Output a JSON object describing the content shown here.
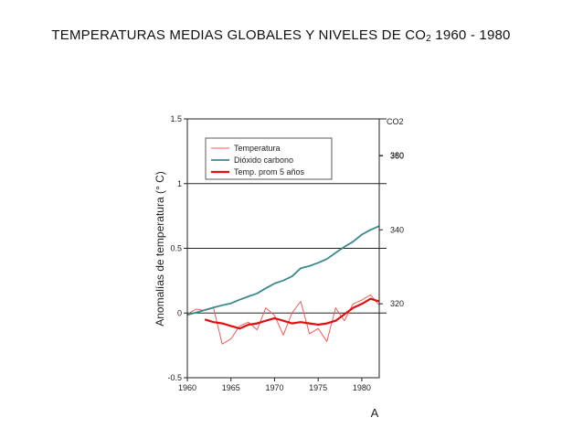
{
  "title": {
    "main": "TEMPERATURAS MEDIAS GLOBALES Y NIVELES DE CO",
    "sub": "2",
    "years": " 1960 - 1980"
  },
  "chart_data": {
    "type": "line",
    "ylabel": "Anomalías de temperatura (° C)",
    "y2label": "CO2",
    "xlabel": "A",
    "xlim": [
      1960,
      1982
    ],
    "ylim": [
      -0.5,
      1.5
    ],
    "y2lim": [
      300,
      370
    ],
    "x_ticks": [
      1960,
      1965,
      1970,
      1975,
      1980
    ],
    "y_ticks": [
      -0.5,
      0,
      0.5,
      1,
      1.5
    ],
    "y_tick_labels": [
      "-0.5",
      "0",
      "0.5",
      "1",
      "1.5"
    ],
    "y2_ticks": [
      320,
      340,
      360,
      380
    ],
    "grid_y": [
      0,
      0.5,
      1,
      1.5
    ],
    "legend_position": "top-left",
    "series": [
      {
        "name": "Temperatura",
        "color": "#f05a5a",
        "axis": "left",
        "x": [
          1960,
          1961,
          1962,
          1963,
          1964,
          1965,
          1966,
          1967,
          1968,
          1969,
          1970,
          1971,
          1972,
          1973,
          1974,
          1975,
          1976,
          1977,
          1978,
          1979,
          1980,
          1981,
          1982
        ],
        "values": [
          -0.01,
          0.03,
          0.02,
          0.04,
          -0.24,
          -0.2,
          -0.1,
          -0.07,
          -0.13,
          0.04,
          -0.02,
          -0.17,
          0.0,
          0.09,
          -0.16,
          -0.12,
          -0.22,
          0.04,
          -0.06,
          0.07,
          0.1,
          0.14,
          0.06
        ]
      },
      {
        "name": "Dióxido carbono",
        "color": "#3a8a8c",
        "axis": "right",
        "x": [
          1960,
          1961,
          1962,
          1963,
          1964,
          1965,
          1966,
          1967,
          1968,
          1969,
          1970,
          1971,
          1972,
          1973,
          1974,
          1975,
          1976,
          1977,
          1978,
          1979,
          1980,
          1981,
          1982
        ],
        "values": [
          317,
          317.6,
          318.3,
          319,
          319.6,
          320.1,
          321.1,
          322,
          322.8,
          324.2,
          325.5,
          326.3,
          327.4,
          329.6,
          330.2,
          331.1,
          332.1,
          333.8,
          335.4,
          336.8,
          338.7,
          340,
          341
        ]
      },
      {
        "name": "Temp. prom 5 años",
        "color": "#e01010",
        "axis": "left",
        "x": [
          1962,
          1963,
          1964,
          1965,
          1966,
          1967,
          1968,
          1969,
          1970,
          1971,
          1972,
          1973,
          1974,
          1975,
          1976,
          1977,
          1978,
          1979,
          1980,
          1981,
          1982
        ],
        "values": [
          -0.05,
          -0.07,
          -0.08,
          -0.1,
          -0.12,
          -0.09,
          -0.08,
          -0.06,
          -0.04,
          -0.06,
          -0.08,
          -0.07,
          -0.08,
          -0.09,
          -0.08,
          -0.06,
          -0.01,
          0.04,
          0.07,
          0.11,
          0.09
        ]
      }
    ]
  }
}
